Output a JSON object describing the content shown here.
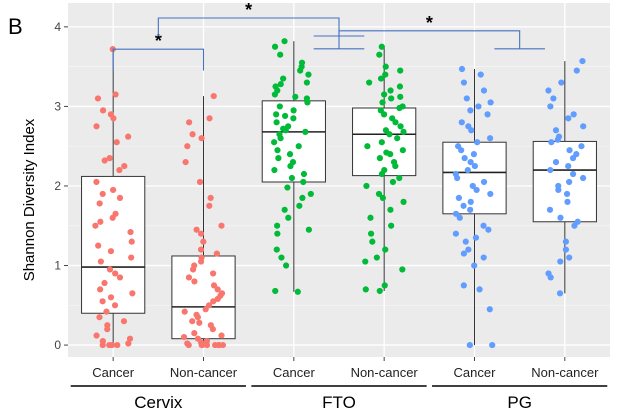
{
  "panel_label": "B",
  "chart_data": {
    "type": "box",
    "title": "",
    "xlabel": "",
    "ylabel": "Shannon Diversity Index",
    "ylim": [
      -0.15,
      4.3
    ],
    "yticks": [
      0,
      1,
      2,
      3,
      4
    ],
    "grid": true,
    "categories": [
      "Cancer",
      "Non-cancer",
      "Cancer",
      "Non-cancer",
      "Cancer",
      "Non-cancer"
    ],
    "groups": [
      {
        "name": "Cervix",
        "members": [
          0,
          1
        ]
      },
      {
        "name": "FTO",
        "members": [
          2,
          3
        ]
      },
      {
        "name": "PG",
        "members": [
          4,
          5
        ]
      }
    ],
    "colors": {
      "Cervix": "#f8766d",
      "FTO": "#00ba38",
      "PG": "#619cff",
      "bracket": "#4472c4",
      "panel": "#ebebeb"
    },
    "boxes": [
      {
        "group": "Cervix",
        "label": "Cancer",
        "min": 0.0,
        "q1": 0.4,
        "median": 0.98,
        "q3": 2.12,
        "max": 3.72,
        "points": [
          3.72,
          3.15,
          3.1,
          2.95,
          2.9,
          2.85,
          2.75,
          2.62,
          2.55,
          2.35,
          2.32,
          2.25,
          2.2,
          2.05,
          1.95,
          1.9,
          1.85,
          1.78,
          1.65,
          1.6,
          1.55,
          1.5,
          1.42,
          1.3,
          1.25,
          1.18,
          1.1,
          1.05,
          0.95,
          0.9,
          0.85,
          0.78,
          0.7,
          0.65,
          0.6,
          0.55,
          0.5,
          0.42,
          0.35,
          0.3,
          0.25,
          0.2,
          0.12,
          0.08,
          0.05,
          0.02,
          0.0,
          0.0,
          0.0,
          0.0
        ]
      },
      {
        "group": "Cervix",
        "label": "Non-cancer",
        "min": 0.0,
        "q1": 0.08,
        "median": 0.48,
        "q3": 1.12,
        "max": 3.13,
        "points": [
          3.13,
          2.85,
          2.8,
          2.65,
          2.6,
          2.5,
          2.3,
          2.05,
          1.85,
          1.75,
          1.5,
          1.45,
          1.4,
          1.3,
          1.2,
          1.15,
          1.1,
          1.05,
          1.0,
          0.95,
          0.9,
          0.85,
          0.8,
          0.75,
          0.7,
          0.65,
          0.62,
          0.58,
          0.55,
          0.5,
          0.45,
          0.42,
          0.38,
          0.35,
          0.3,
          0.28,
          0.25,
          0.2,
          0.15,
          0.12,
          0.1,
          0.08,
          0.05,
          0.03,
          0.02,
          0.0,
          0.0,
          0.0,
          0.0,
          0.0,
          0.0,
          0.0,
          0.0
        ]
      },
      {
        "group": "FTO",
        "label": "Cancer",
        "min": 0.67,
        "q1": 2.05,
        "median": 2.68,
        "q3": 3.07,
        "max": 3.82,
        "points": [
          3.82,
          3.75,
          3.65,
          3.55,
          3.5,
          3.45,
          3.4,
          3.35,
          3.3,
          3.28,
          3.25,
          3.2,
          3.15,
          3.12,
          3.1,
          3.05,
          3.0,
          2.95,
          2.9,
          2.88,
          2.85,
          2.8,
          2.75,
          2.72,
          2.7,
          2.68,
          2.65,
          2.6,
          2.55,
          2.5,
          2.45,
          2.4,
          2.35,
          2.3,
          2.25,
          2.2,
          2.15,
          2.1,
          2.05,
          1.98,
          1.9,
          1.85,
          1.75,
          1.7,
          1.6,
          1.5,
          1.45,
          1.4,
          1.2,
          1.1,
          1.0,
          0.68,
          0.67
        ]
      },
      {
        "group": "FTO",
        "label": "Non-cancer",
        "min": 0.68,
        "q1": 2.13,
        "median": 2.65,
        "q3": 2.98,
        "max": 3.75,
        "points": [
          3.75,
          3.65,
          3.5,
          3.45,
          3.4,
          3.35,
          3.3,
          3.25,
          3.2,
          3.15,
          3.12,
          3.1,
          3.05,
          3.0,
          2.98,
          2.95,
          2.9,
          2.85,
          2.8,
          2.75,
          2.7,
          2.68,
          2.65,
          2.6,
          2.55,
          2.5,
          2.45,
          2.42,
          2.4,
          2.35,
          2.3,
          2.25,
          2.2,
          2.15,
          2.1,
          2.05,
          2.0,
          1.9,
          1.85,
          1.8,
          1.7,
          1.6,
          1.5,
          1.4,
          1.3,
          1.2,
          1.1,
          1.05,
          0.95,
          0.75,
          0.7,
          0.68
        ]
      },
      {
        "group": "PG",
        "label": "Cancer",
        "min": 0.0,
        "q1": 1.65,
        "median": 2.17,
        "q3": 2.55,
        "max": 3.47,
        "points": [
          3.47,
          3.4,
          3.3,
          3.2,
          3.1,
          3.05,
          3.0,
          2.95,
          2.9,
          2.8,
          2.75,
          2.7,
          2.6,
          2.55,
          2.5,
          2.45,
          2.4,
          2.35,
          2.3,
          2.25,
          2.2,
          2.15,
          2.1,
          2.05,
          2.0,
          1.95,
          1.9,
          1.85,
          1.8,
          1.75,
          1.7,
          1.65,
          1.6,
          1.5,
          1.45,
          1.4,
          1.35,
          1.3,
          1.2,
          1.15,
          1.1,
          1.0,
          0.75,
          0.7,
          0.45,
          0.0,
          0.0
        ]
      },
      {
        "group": "PG",
        "label": "Non-cancer",
        "min": 0.65,
        "q1": 1.55,
        "median": 2.2,
        "q3": 2.56,
        "max": 3.57,
        "points": [
          3.57,
          3.45,
          3.3,
          3.2,
          3.1,
          3.0,
          2.9,
          2.85,
          2.75,
          2.7,
          2.62,
          2.58,
          2.55,
          2.5,
          2.45,
          2.4,
          2.35,
          2.3,
          2.25,
          2.2,
          2.15,
          2.1,
          2.05,
          2.0,
          1.95,
          1.9,
          1.8,
          1.7,
          1.6,
          1.55,
          1.5,
          1.3,
          1.2,
          1.1,
          1.05,
          0.9,
          0.85,
          0.65
        ]
      }
    ],
    "annotations": [
      {
        "label": "*",
        "type": "pair",
        "from": 0,
        "to": 1,
        "y": 3.72
      },
      {
        "label": "*",
        "type": "groups",
        "from": 0,
        "to": 1,
        "y": 4.4
      },
      {
        "label": "*",
        "type": "groups",
        "from": 1,
        "to": 2,
        "y": 3.95
      }
    ]
  }
}
